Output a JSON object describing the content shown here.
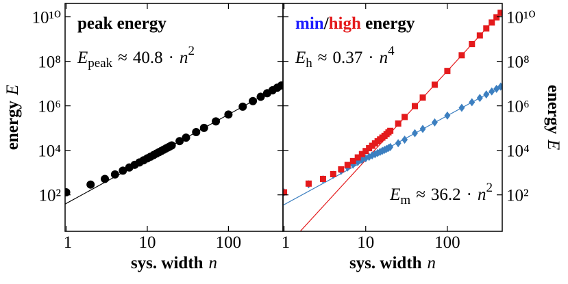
{
  "chart_data": [
    {
      "type": "scatter",
      "xscale": "log",
      "yscale": "log",
      "title": [
        {
          "text": "peak energy"
        }
      ],
      "xlabel": "sys. width",
      "xlabel_symbol": "n",
      "ylabel": "energy",
      "ylabel_symbol": "E",
      "yaxis_side": "left",
      "xlim": [
        0.97,
        470
      ],
      "ylim": [
        2.3,
        40000000000
      ],
      "xticks": [
        1,
        10,
        100
      ],
      "yticks": [
        {
          "value": 100,
          "label": "10²"
        },
        {
          "value": 10000,
          "label": "10⁴"
        },
        {
          "value": 1000000,
          "label": "10⁶"
        },
        {
          "value": 100000000,
          "label": "10⁸"
        },
        {
          "value": 10000000000,
          "label": "10¹⁰"
        }
      ],
      "x": [
        1,
        2,
        3,
        4,
        5,
        6,
        7,
        8,
        9,
        10,
        11,
        12,
        13,
        14,
        15,
        16,
        17,
        18,
        19,
        20,
        25,
        30,
        40,
        50,
        70,
        100,
        150,
        200,
        250,
        300,
        350,
        400,
        450
      ],
      "series": [
        {
          "color": "#000000",
          "marker": "circle",
          "values": [
            130,
            290,
            520,
            830,
            1220,
            1690,
            2240,
            2860,
            3570,
            4360,
            5230,
            6190,
            7220,
            8330,
            9530,
            10800,
            12200,
            13600,
            15100,
            16700,
            26000,
            37200,
            65900,
            102000,
            200000,
            408000,
            918000,
            1630000,
            2550000,
            3670000,
            5000000,
            6530000,
            8260000
          ],
          "fit": {
            "symbol": "E",
            "subscript": "peak",
            "relation": "≈",
            "coefficient": 40.8,
            "times": "·",
            "variable": "n",
            "exponent": 2,
            "corner": "top-left",
            "line_color": "#000000"
          }
        }
      ]
    },
    {
      "type": "scatter",
      "xscale": "log",
      "yscale": "log",
      "title": [
        {
          "text": "min",
          "color": "#1a1aff"
        },
        {
          "text": "/"
        },
        {
          "text": "high",
          "color": "#e41a1c"
        },
        {
          "text": " energy"
        }
      ],
      "xlabel": "sys. width",
      "xlabel_symbol": "n",
      "ylabel": "energy",
      "ylabel_symbol": "E",
      "yaxis_side": "right",
      "xlim": [
        0.97,
        470
      ],
      "ylim": [
        2.3,
        40000000000
      ],
      "xticks": [
        1,
        10,
        100
      ],
      "yticks": [
        {
          "value": 100,
          "label": "10²"
        },
        {
          "value": 10000,
          "label": "10⁴"
        },
        {
          "value": 1000000,
          "label": "10⁶"
        },
        {
          "value": 100000000,
          "label": "10⁸"
        },
        {
          "value": 10000000000,
          "label": "10¹⁰"
        }
      ],
      "x": [
        1,
        2,
        3,
        4,
        5,
        6,
        7,
        8,
        9,
        10,
        11,
        12,
        13,
        14,
        15,
        16,
        17,
        18,
        19,
        20,
        25,
        30,
        40,
        50,
        70,
        100,
        150,
        200,
        250,
        300,
        350,
        400,
        450
      ],
      "series": [
        {
          "color": "#3c7fc0",
          "marker": "diamond",
          "values": [
            130,
            300,
            500,
            800,
            1200,
            1700,
            2300,
            3000,
            3700,
            4400,
            5100,
            5900,
            6700,
            7600,
            8500,
            9500,
            10500,
            11600,
            12800,
            14000,
            21000,
            30000,
            59000,
            92000,
            180000,
            365000,
            820000,
            1450000,
            2270000,
            3260000,
            4440000,
            5800000,
            7340000
          ],
          "fit": {
            "symbol": "E",
            "subscript": "m",
            "relation": "≈",
            "coefficient": 36.2,
            "times": "·",
            "variable": "n",
            "exponent": 2,
            "corner": "bottom-right",
            "line_color": "#3c7fc0"
          }
        },
        {
          "color": "#e41a1c",
          "marker": "square",
          "values": [
            130,
            320,
            520,
            850,
            1400,
            2200,
            3300,
            4800,
            6800,
            9300,
            12500,
            16000,
            20500,
            25500,
            31000,
            37500,
            45000,
            54000,
            64000,
            75000,
            160000,
            315000,
            975000,
            2360000,
            8900000,
            37000000,
            187000000,
            592000000,
            1450000000,
            3000000000,
            5550000000,
            9470000000,
            15200000000
          ],
          "fit": {
            "symbol": "E",
            "subscript": "h",
            "relation": "≈",
            "coefficient": 0.37,
            "times": "·",
            "variable": "n",
            "exponent": 4,
            "corner": "top-left",
            "line_color": "#e41a1c"
          }
        }
      ]
    }
  ]
}
